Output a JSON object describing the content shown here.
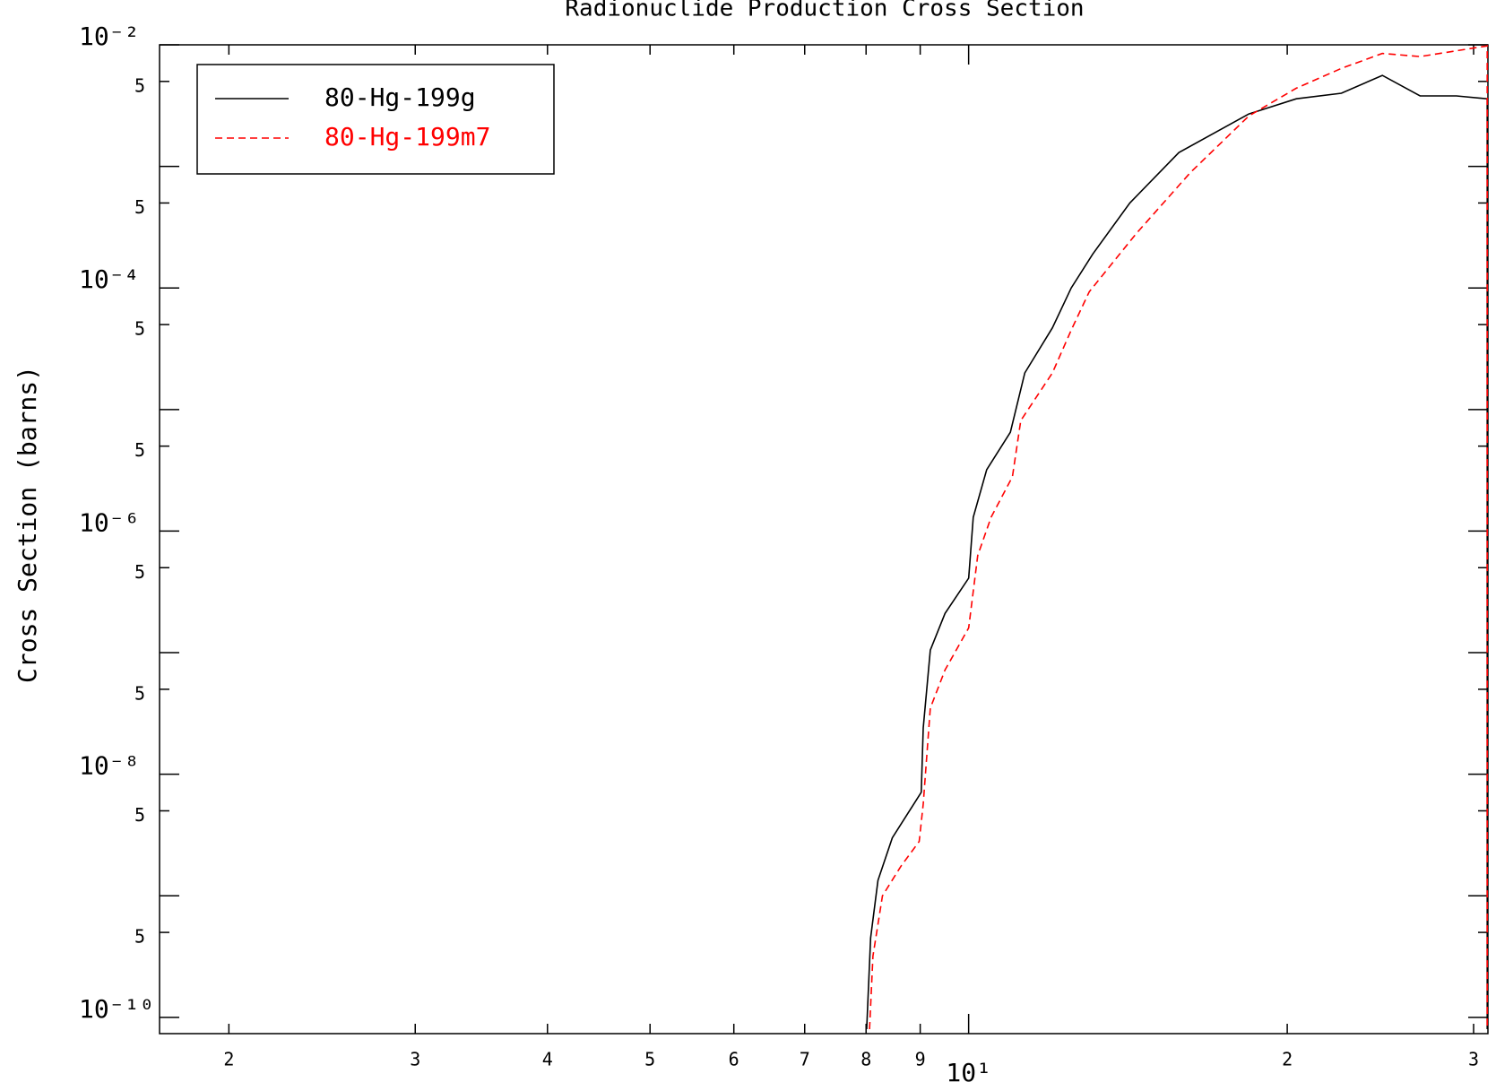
{
  "chart_data": {
    "type": "line",
    "title": "Radionuclide Production Cross Section",
    "y_label": "Cross Section (barns)",
    "xscale": "log",
    "yscale": "log",
    "xlim": [
      1.72,
      30.95
    ],
    "ylim": [
      7.35e-11,
      0.01
    ],
    "xticks": [
      2,
      3,
      4,
      5,
      6,
      7,
      8,
      9,
      {
        "value": 10,
        "label": "10¹"
      },
      {
        "value": 20,
        "label": "2"
      },
      {
        "value": 30,
        "label": "3"
      }
    ],
    "yticks": [
      {
        "value": 0.01,
        "label": "10⁻²"
      },
      {
        "value": 0.005,
        "label": "5"
      },
      {
        "value": 0.0005,
        "label": "5"
      },
      {
        "value": 0.0001,
        "label": "10⁻⁴"
      },
      {
        "value": 5e-05,
        "label": "5"
      },
      {
        "value": 5e-06,
        "label": "5"
      },
      {
        "value": 1e-06,
        "label": "10⁻⁶"
      },
      {
        "value": 5e-07,
        "label": "5"
      },
      {
        "value": 5e-08,
        "label": "5"
      },
      {
        "value": 1e-08,
        "label": "10⁻⁸"
      },
      {
        "value": 5e-09,
        "label": "5"
      },
      {
        "value": 5e-10,
        "label": "5"
      },
      {
        "value": 1e-10,
        "label": "10⁻¹⁰"
      }
    ],
    "yticks_unlabeled": [
      0.001,
      1e-05,
      1e-07,
      1e-09
    ],
    "legend": "upper left",
    "series": [
      {
        "name": "80-Hg-199g",
        "color": "#000000",
        "dash": "none",
        "x": [
          8.01,
          8.08,
          8.21,
          8.47,
          9.02,
          9.06,
          9.2,
          9.5,
          10.0,
          10.1,
          10.4,
          10.95,
          11.3,
          12.0,
          12.5,
          13.1,
          14.2,
          15.8,
          18.4,
          20.4,
          22.5,
          24.6,
          26.7,
          28.9,
          30.9,
          30.9
        ],
        "values": [
          8e-11,
          4.5e-10,
          1.34e-09,
          3e-09,
          7.1e-09,
          2.4e-08,
          1.05e-07,
          2.1e-07,
          4.1e-07,
          1.3e-06,
          3.2e-06,
          6.5e-06,
          2e-05,
          4.7e-05,
          0.0001,
          0.00019,
          0.0005,
          0.0013,
          0.0027,
          0.0036,
          0.004,
          0.0056,
          0.0038,
          0.0038,
          0.0036,
          8e-11
        ]
      },
      {
        "name": "80-Hg-199m7",
        "color": "#ff0000",
        "dash": "8,5",
        "x": [
          8.06,
          8.12,
          8.29,
          8.63,
          8.98,
          9.06,
          9.2,
          9.5,
          10.0,
          10.2,
          10.5,
          11.0,
          11.2,
          12.0,
          12.5,
          13.0,
          14.4,
          16.2,
          18.4,
          20.4,
          22.5,
          24.6,
          26.7,
          30.9,
          30.9
        ],
        "values": [
          8e-11,
          3.2e-10,
          1e-09,
          1.75e-09,
          2.8e-09,
          5.7e-09,
          3.5e-08,
          7.2e-08,
          1.6e-07,
          6.3e-07,
          1.3e-06,
          2.8e-06,
          8.1e-06,
          2e-05,
          4.5e-05,
          9.3e-05,
          0.00028,
          0.00089,
          0.0026,
          0.0044,
          0.0064,
          0.0085,
          0.008,
          0.0098,
          8e-11
        ]
      }
    ]
  }
}
